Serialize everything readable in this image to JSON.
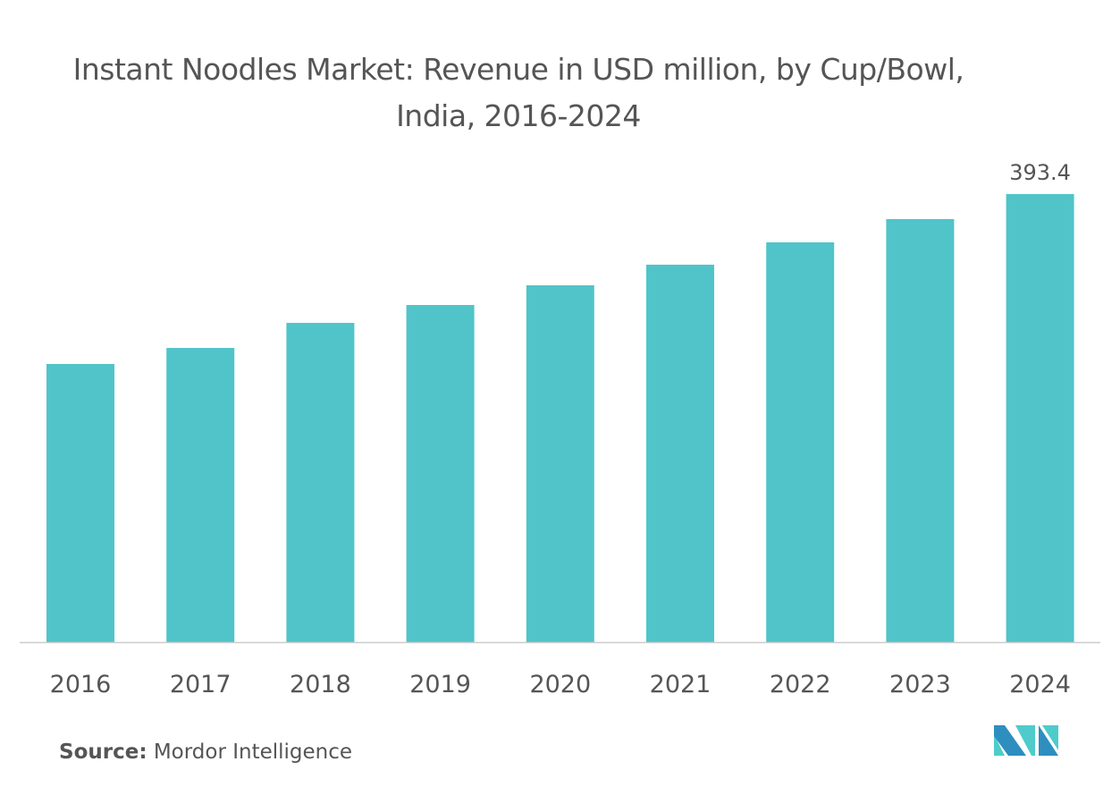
{
  "chart_data": {
    "type": "bar",
    "title": "Instant Noodles Market: Revenue in USD million, by Cup/Bowl, India, 2016-2024",
    "categories": [
      "2016",
      "2017",
      "2018",
      "2019",
      "2020",
      "2021",
      "2022",
      "2023",
      "2024"
    ],
    "values": [
      244.2,
      258.3,
      280.3,
      296.0,
      313.3,
      331.4,
      351.0,
      371.4,
      393.4
    ],
    "data_labels": {
      "8": "393.4"
    },
    "xlabel": "",
    "ylabel": "",
    "ylim": [
      0,
      393.4
    ],
    "grid": false,
    "bar_color": "#50c4c9"
  },
  "source": {
    "label": "Source:",
    "text": "Mordor Intelligence"
  },
  "logo": {
    "text": "Mordor Intelligence",
    "colors": [
      "#2e8ec0",
      "#4fcbcb"
    ]
  }
}
